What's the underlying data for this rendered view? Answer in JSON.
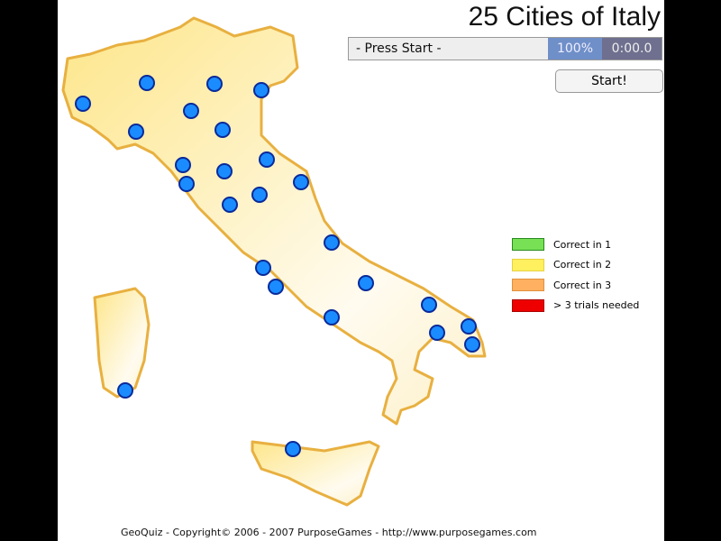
{
  "title": "25 Cities of Italy",
  "status": {
    "message": "- Press Start -",
    "percent": "100%",
    "time": "0:00.0"
  },
  "start_label": "Start!",
  "legend": [
    {
      "label": "Correct in 1",
      "color": "#77e055"
    },
    {
      "label": "Correct in 2",
      "color": "#fff060"
    },
    {
      "label": "Correct in 3",
      "color": "#ffb060"
    },
    {
      "label": "> 3 trials needed",
      "color": "#ee0000"
    }
  ],
  "city_marker_color": "#1a8cff",
  "city_count": 25,
  "footer": "GeoQuiz - Copyright© 2006 - 2007 PurposeGames - http://www.purposegames.com"
}
